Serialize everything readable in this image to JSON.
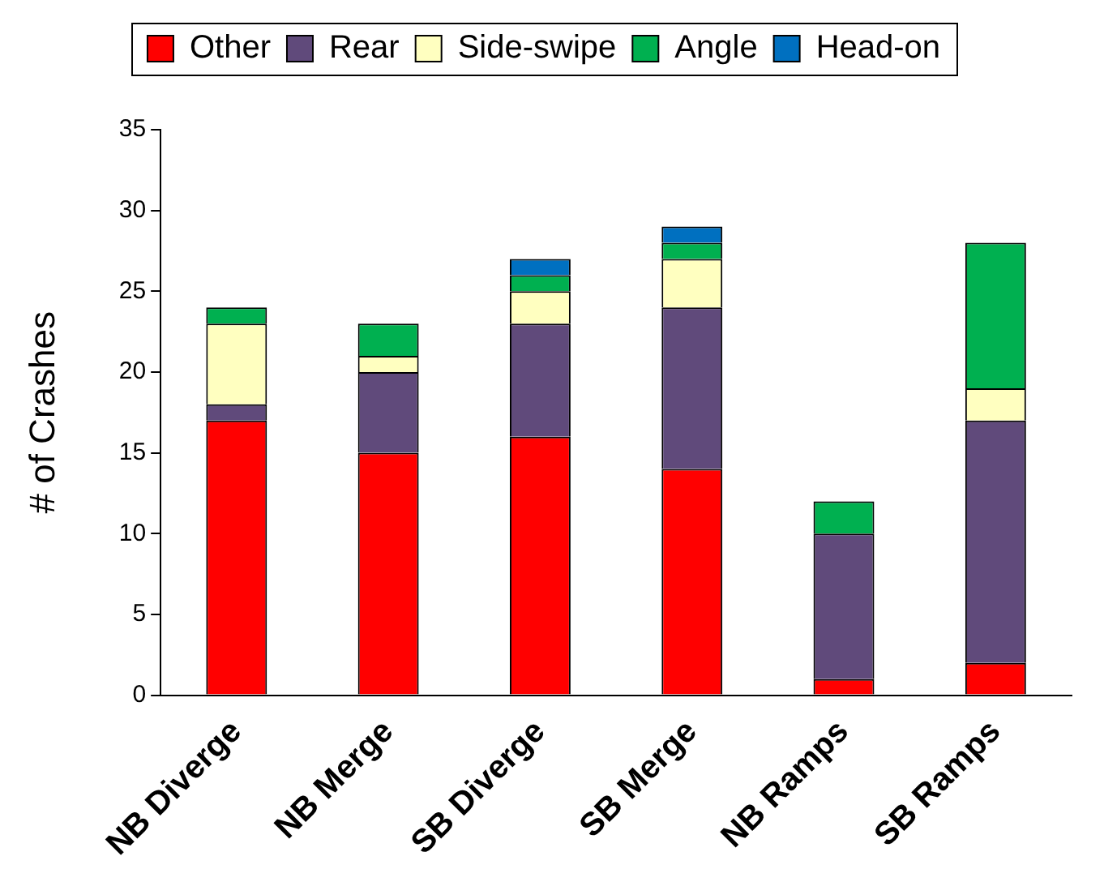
{
  "chart_data": {
    "type": "bar",
    "stacked": true,
    "ylabel": "# of Crashes",
    "categories": [
      "NB Diverge",
      "NB Merge",
      "SB Diverge",
      "SB Merge",
      "NB Ramps",
      "SB Ramps"
    ],
    "series": [
      {
        "name": "Other",
        "color": "#ff0000",
        "values": [
          17,
          15,
          16,
          14,
          1,
          2
        ]
      },
      {
        "name": "Rear",
        "color": "#604a7b",
        "values": [
          1,
          5,
          7,
          10,
          9,
          15
        ]
      },
      {
        "name": "Side-swipe",
        "color": "#ffffc0",
        "values": [
          5,
          1,
          2,
          3,
          0,
          2
        ]
      },
      {
        "name": "Angle",
        "color": "#00b050",
        "values": [
          1,
          2,
          1,
          1,
          2,
          9
        ]
      },
      {
        "name": "Head-on",
        "color": "#0070c0",
        "values": [
          0,
          0,
          1,
          1,
          0,
          0
        ]
      }
    ],
    "ylim": [
      0,
      35
    ],
    "yticks": [
      0,
      5,
      10,
      15,
      20,
      25,
      30,
      35
    ],
    "grid": false,
    "legend": "top"
  }
}
